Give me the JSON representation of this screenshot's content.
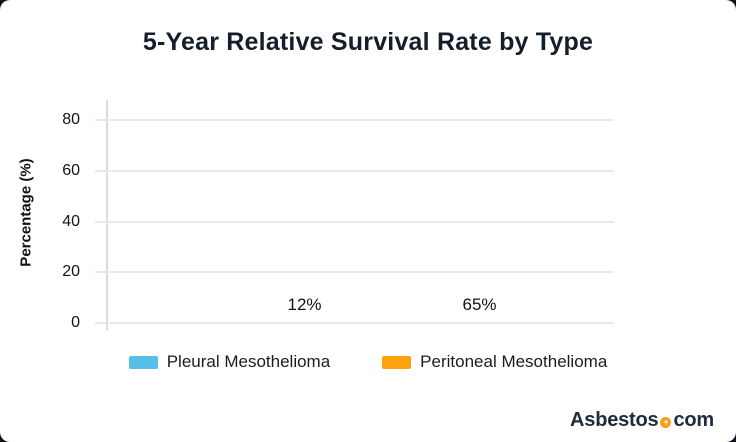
{
  "chart_data": {
    "type": "bar",
    "title": "5-Year Relative Survival Rate by Type",
    "categories": [
      "Pleural Mesothelioma",
      "Peritoneal Mesothelioma"
    ],
    "values": [
      12,
      65
    ],
    "value_labels": [
      "12%",
      "65%"
    ],
    "xlabel": "",
    "ylabel": "Percentage (%)",
    "yticks": [
      0,
      20,
      40,
      60,
      80
    ],
    "ylim": [
      0,
      88
    ],
    "grid": true,
    "legend_position": "bottom",
    "series_colors": [
      "#56c0e9",
      "#fca20b"
    ]
  },
  "legend": {
    "items": [
      {
        "label": "Pleural Mesothelioma",
        "color": "#56c0e9"
      },
      {
        "label": "Peritoneal Mesothelioma",
        "color": "#fca20b"
      }
    ]
  },
  "branding": {
    "name_part1": "Asbestos",
    "separator_icon": "plus-circle-icon",
    "name_part2": "com",
    "text_color": "#1e2c3c",
    "accent_color": "#f89c1c",
    "plus_glyph": "+"
  },
  "theme": {
    "background": "#ffffff",
    "title_color": "#141d2b",
    "grid_color": "#e9e9e9",
    "axis_color": "#dcdcdc"
  }
}
